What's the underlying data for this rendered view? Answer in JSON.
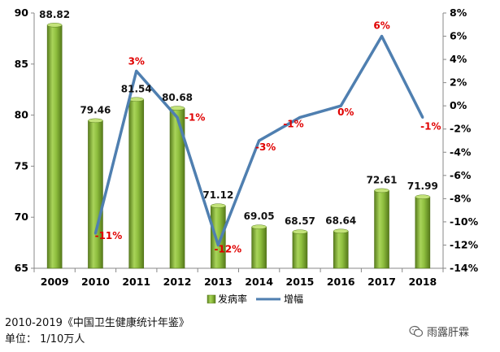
{
  "chart_data": {
    "type": "bar",
    "categories": [
      "2009",
      "2010",
      "2011",
      "2012",
      "2013",
      "2014",
      "2015",
      "2016",
      "2017",
      "2018"
    ],
    "series": [
      {
        "name": "发病率",
        "type": "bar",
        "axis": "left",
        "color": "#7aa62e",
        "values": [
          88.82,
          79.46,
          81.54,
          80.68,
          71.12,
          69.05,
          68.57,
          68.64,
          72.61,
          71.99
        ],
        "labels": [
          "88.82",
          "79.46",
          "81.54",
          "80.68",
          "71.12",
          "69.05",
          "68.57",
          "68.64",
          "72.61",
          "71.99"
        ]
      },
      {
        "name": "增幅",
        "type": "line",
        "axis": "right",
        "color": "#4f7fb0",
        "values": [
          null,
          -11,
          3,
          -1,
          -12,
          -3,
          -1,
          0,
          6,
          -1
        ],
        "labels": [
          null,
          "-11%",
          "3%",
          "-1%",
          "-12%",
          "-3%",
          "-1%",
          "0%",
          "6%",
          "-1%"
        ],
        "label_color": "#e00000"
      }
    ],
    "y_left": {
      "range": [
        65,
        90
      ],
      "ticks": [
        "65",
        "70",
        "75",
        "80",
        "85",
        "90"
      ]
    },
    "y_right": {
      "range": [
        -14,
        8
      ],
      "ticks": [
        "-14%",
        "-12%",
        "-10%",
        "-8%",
        "-6%",
        "-4%",
        "-2%",
        "0%",
        "2%",
        "4%",
        "6%",
        "8%"
      ]
    },
    "grid": false,
    "legend_position": "bottom"
  },
  "source": "2010-2019《中国卫生健康统计年鉴》",
  "unit": "单位： 1/10万人",
  "watermark": "雨露肝霖"
}
